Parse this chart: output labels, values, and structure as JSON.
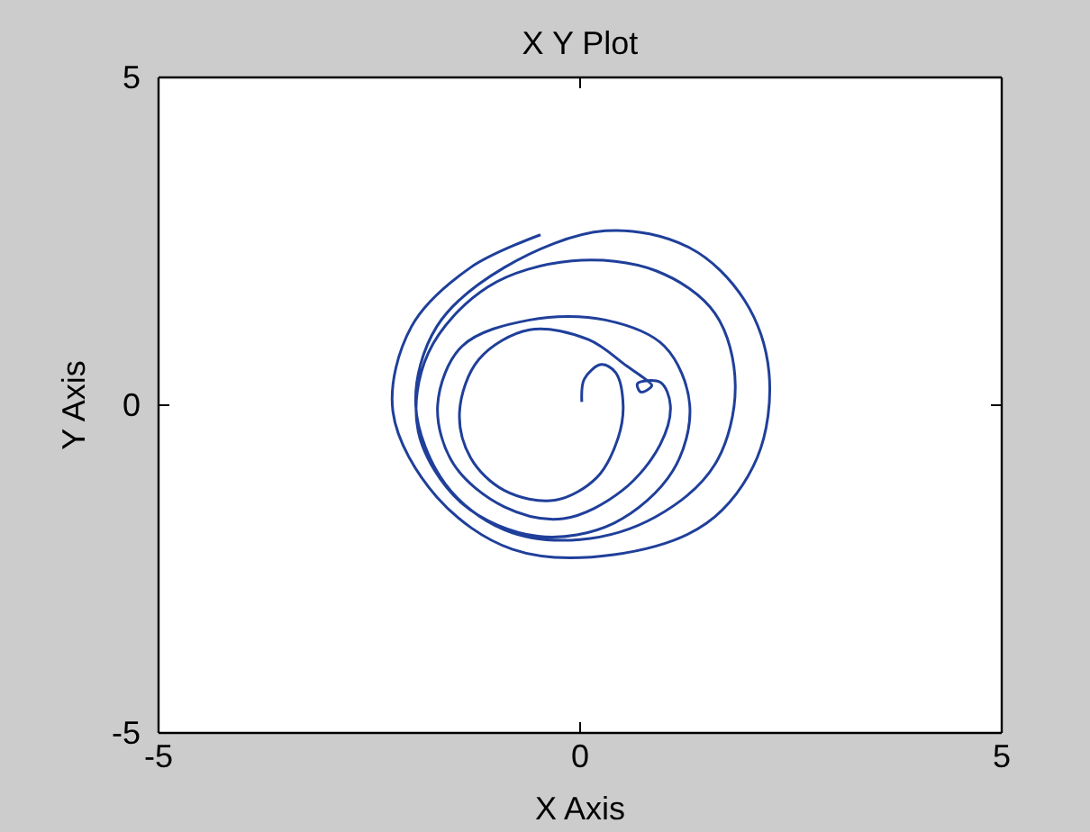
{
  "chart_data": {
    "type": "line",
    "title": "X Y Plot",
    "xlabel": "X Axis",
    "ylabel": "Y Axis",
    "xlim": [
      -5,
      5
    ],
    "ylim": [
      -5,
      5
    ],
    "xticks": [
      -5,
      0,
      5
    ],
    "yticks": [
      -5,
      0,
      5
    ],
    "grid": false,
    "marker": "none",
    "line_style": "solid",
    "series": [
      {
        "color": "#1f3f9a",
        "x": [
          0.02,
          0.05,
          0.25,
          0.42,
          0.51,
          0.45,
          0.2,
          -0.3,
          -0.9,
          -1.3,
          -1.43,
          -1.2,
          -0.6,
          0.1,
          0.55,
          0.75,
          0.85,
          0.72,
          0.68,
          0.95,
          1.07,
          0.95,
          0.5,
          -0.2,
          -0.9,
          -1.5,
          -1.69,
          -1.4,
          -0.6,
          0.3,
          1.0,
          1.3,
          1.1,
          0.4,
          -0.5,
          -1.4,
          -1.92,
          -1.8,
          -1.1,
          -0.1,
          0.9,
          1.6,
          1.84,
          1.6,
          0.9,
          0.0,
          -0.9,
          -1.6,
          -1.95,
          -1.7,
          -0.9,
          0.3,
          1.3,
          1.95,
          2.24,
          2.1,
          1.5,
          0.4,
          -0.8,
          -1.7,
          -2.22,
          -2.0,
          -1.3,
          -0.47
        ],
        "values": [
          0.05,
          0.4,
          0.62,
          0.5,
          0.0,
          -0.5,
          -1.1,
          -1.45,
          -1.3,
          -0.8,
          -0.1,
          0.7,
          1.15,
          1.0,
          0.6,
          0.42,
          0.3,
          0.2,
          0.33,
          0.35,
          0.0,
          -0.6,
          -1.3,
          -1.73,
          -1.55,
          -0.9,
          0.0,
          0.9,
          1.3,
          1.3,
          0.9,
          0.0,
          -1.0,
          -1.8,
          -2.0,
          -1.5,
          -0.4,
          0.8,
          1.8,
          2.2,
          2.05,
          1.4,
          0.3,
          -0.9,
          -1.7,
          -2.05,
          -1.9,
          -1.2,
          0.0,
          1.2,
          2.1,
          2.66,
          2.4,
          1.6,
          0.5,
          -0.8,
          -1.8,
          -2.28,
          -2.2,
          -1.4,
          -0.1,
          1.2,
          2.1,
          2.6
        ]
      }
    ]
  }
}
